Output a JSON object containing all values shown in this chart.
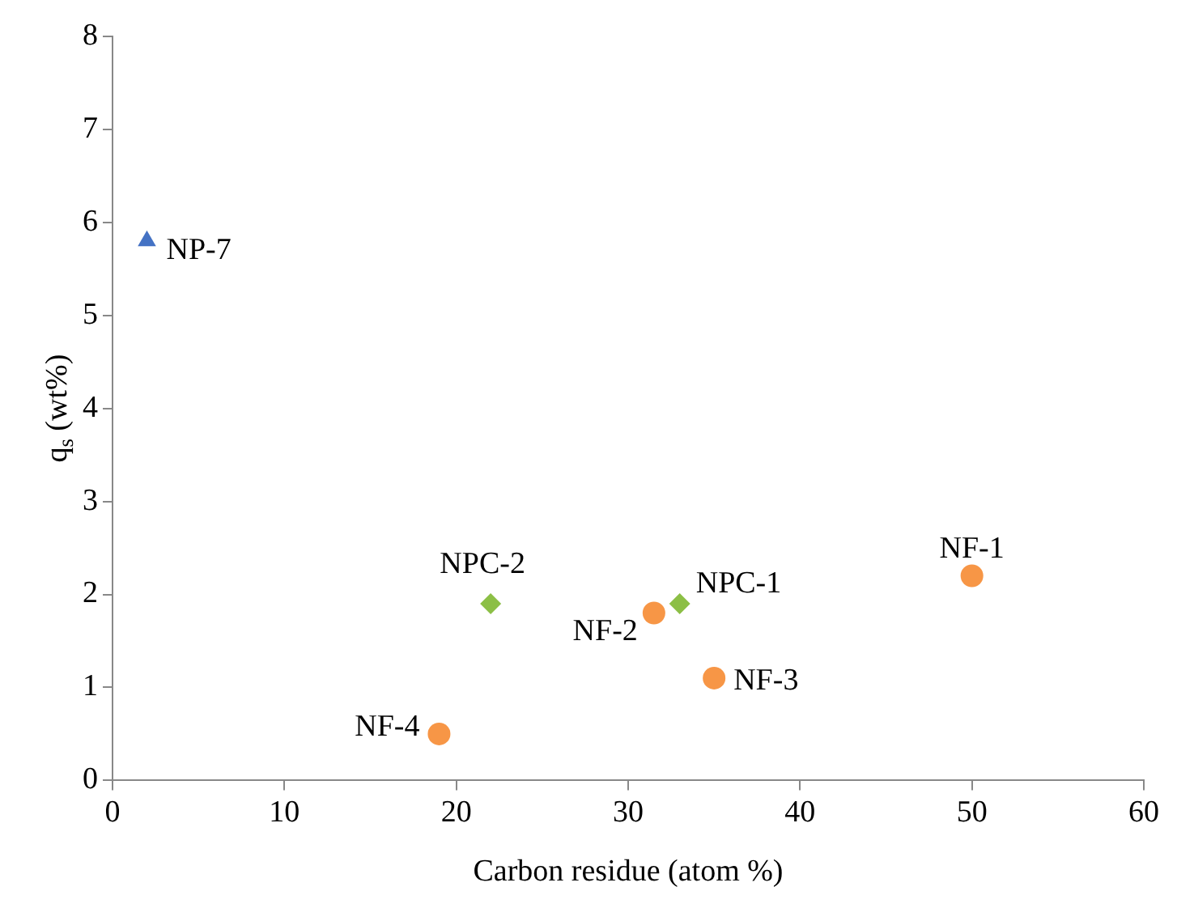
{
  "chart_data": {
    "type": "scatter",
    "xlabel": "Carbon residue (atom %)",
    "ylabel": "q$_{s}$ (wt%)",
    "xlim": [
      0,
      60
    ],
    "xticks": [
      0,
      10,
      20,
      30,
      40,
      50,
      60
    ],
    "ylim": [
      0,
      8
    ],
    "yticks": [
      0,
      1,
      2,
      3,
      4,
      5,
      6,
      7,
      8
    ],
    "grid": false,
    "legend": false,
    "series": [
      {
        "color": "#f79646",
        "marker": "circle",
        "x": [
          50,
          31.5,
          35,
          19
        ],
        "values": [
          2.2,
          1.8,
          1.1,
          0.5
        ]
      },
      {
        "color": "#8cbf46",
        "marker": "diamond",
        "x": [
          33,
          22
        ],
        "values": [
          1.9,
          1.9
        ]
      },
      {
        "color": "#4472c4",
        "marker": "triangle",
        "x": [
          2
        ],
        "values": [
          5.8
        ]
      }
    ],
    "annotations": [
      {
        "text": "NF-1",
        "x": 50,
        "y": 2.2
      },
      {
        "text": "NF-2",
        "x": 31.5,
        "y": 1.8
      },
      {
        "text": "NF-3",
        "x": 35,
        "y": 1.1
      },
      {
        "text": "NF-4",
        "x": 19,
        "y": 0.5
      },
      {
        "text": "NPC-1",
        "x": 33,
        "y": 1.9
      },
      {
        "text": "NPC-2",
        "x": 22,
        "y": 1.9
      },
      {
        "text": "NP-7",
        "x": 2,
        "y": 5.8
      }
    ]
  }
}
